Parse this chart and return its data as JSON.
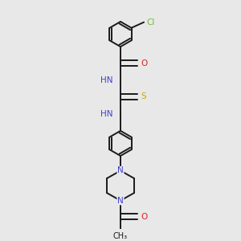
{
  "background_color": "#e8e8e8",
  "bond_color": "#1a1a1a",
  "figsize": [
    3.0,
    3.0
  ],
  "dpi": 100,
  "atom_colors": {
    "N": "#4040d0",
    "O": "#e02020",
    "S": "#c8a800",
    "Cl": "#70c030",
    "C": "#1a1a1a",
    "H": "#4040d0"
  },
  "bond_lw": 1.4,
  "hex_r": 0.055,
  "xlim": [
    0.0,
    1.0
  ],
  "ylim": [
    0.0,
    1.0
  ]
}
